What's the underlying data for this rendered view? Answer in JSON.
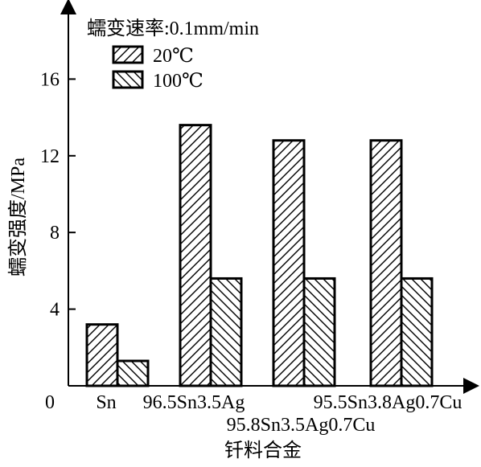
{
  "chart_data": {
    "type": "bar",
    "title": "",
    "xlabel": "钎料合金",
    "ylabel": "蠕变强度/MPa",
    "annotation": "蠕变速率:0.1mm/min",
    "categories": [
      "Sn",
      "96.5Sn3.5Ag",
      "95.8Sn3.5Ag0.7Cu",
      "95.5Sn3.8Ag0.7Cu"
    ],
    "series": [
      {
        "name": "20℃",
        "values": [
          3.2,
          13.6,
          12.8,
          12.8
        ],
        "pattern": "hatch-forward"
      },
      {
        "name": "100℃",
        "values": [
          1.3,
          5.6,
          5.6,
          5.6
        ],
        "pattern": "hatch-backward"
      }
    ],
    "ylim": [
      0,
      20
    ],
    "yticks": [
      0,
      4,
      8,
      12,
      16
    ],
    "grid": false,
    "legend_position": "top-left",
    "colors": {
      "ink": "#000000",
      "background": "#ffffff"
    }
  }
}
